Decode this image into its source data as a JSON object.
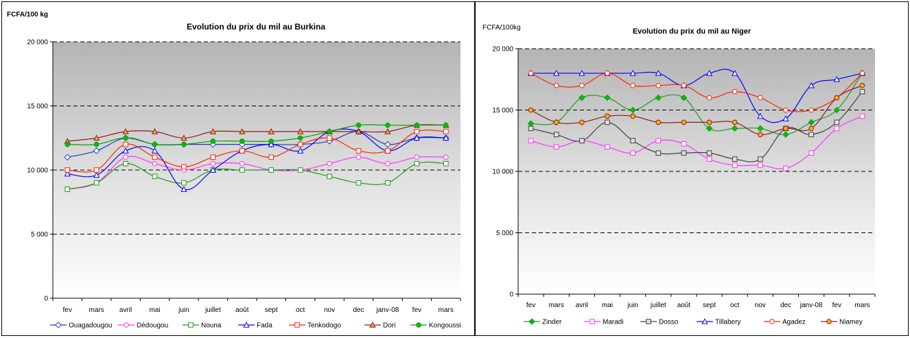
{
  "chart_data": [
    {
      "type": "line",
      "title": "Evolution du prix du mil au Burkina",
      "ylabel": "FCFA/100 kg",
      "ylim": [
        0,
        20000
      ],
      "yticks": [
        "0",
        "5 000",
        "10 000",
        "15 000",
        "20 000"
      ],
      "ytick_values": [
        0,
        5000,
        10000,
        15000,
        20000
      ],
      "categories": [
        "fev",
        "mars",
        "avril",
        "mai",
        "juin",
        "juillet",
        "août",
        "sept",
        "oct",
        "nov",
        "dec",
        "janv-08",
        "fev",
        "mars"
      ],
      "legend_position": "bottom",
      "grid": "dashed horizontal",
      "series": [
        {
          "name": "Ouagadougou",
          "color": "#1f3fbf",
          "marker": "diamond",
          "fill": "#ffffff",
          "values": [
            11000,
            11500,
            12500,
            12000,
            12000,
            12000,
            12000,
            12000,
            12000,
            12250,
            13000,
            12000,
            12500,
            12500
          ]
        },
        {
          "name": "Dédougou",
          "color": "#ff33ff",
          "marker": "circle",
          "fill": "#ffffff",
          "values": [
            8500,
            9000,
            11000,
            10500,
            10000,
            10500,
            10500,
            10000,
            10000,
            10500,
            11000,
            10500,
            11000,
            11000
          ]
        },
        {
          "name": "Nouna",
          "color": "#1a9a1a",
          "marker": "square",
          "fill": "#ffffff",
          "values": [
            8500,
            9000,
            10500,
            9500,
            9000,
            10000,
            10000,
            10000,
            10000,
            9500,
            9000,
            9000,
            10500,
            10500
          ]
        },
        {
          "name": "Fada",
          "color": "#0000ff",
          "marker": "triangle",
          "fill": "#ffffff",
          "values": [
            9700,
            9600,
            11500,
            11500,
            8500,
            10000,
            11500,
            12000,
            11500,
            13000,
            13000,
            11500,
            12500,
            12500
          ]
        },
        {
          "name": "Tenkodogo",
          "color": "#ff2200",
          "marker": "square",
          "fill": "#ffffff",
          "values": [
            10000,
            10000,
            12000,
            11000,
            10250,
            11000,
            11500,
            11000,
            12000,
            12500,
            11500,
            11500,
            13000,
            13000
          ]
        },
        {
          "name": "Dori",
          "color": "#8b1a1a",
          "marker": "triangle",
          "fill": "#ffa040",
          "values": [
            12250,
            12500,
            13000,
            13000,
            12500,
            13000,
            13000,
            13000,
            13000,
            13000,
            13000,
            13000,
            13500,
            13500
          ]
        },
        {
          "name": "Kongoussi",
          "color": "#00a000",
          "marker": "circle",
          "fill": "#00c000",
          "values": [
            12000,
            12000,
            12500,
            12000,
            12000,
            12250,
            12250,
            12250,
            12500,
            13000,
            13500,
            13500,
            13500,
            13500
          ]
        }
      ]
    },
    {
      "type": "line",
      "title": "Evolution du prix du mil au Niger",
      "ylabel": "FCFA/100kg",
      "ylim": [
        0,
        20000
      ],
      "yticks": [
        "0",
        "5 000",
        "10 000",
        "15 000",
        "20 000"
      ],
      "ytick_values": [
        0,
        5000,
        10000,
        15000,
        20000
      ],
      "categories": [
        "fev",
        "mars",
        "avril",
        "mai",
        "juin",
        "juillet",
        "août",
        "sept",
        "oct",
        "nov",
        "dec",
        "janv-08",
        "fev",
        "mars"
      ],
      "legend_position": "bottom",
      "grid": "dashed horizontal",
      "series": [
        {
          "name": "Zinder",
          "color": "#1a9a1a",
          "marker": "diamond",
          "fill": "#00c000",
          "values": [
            13900,
            14000,
            16000,
            16000,
            15000,
            16000,
            16000,
            13500,
            13500,
            13500,
            13000,
            14000,
            15000,
            18000
          ]
        },
        {
          "name": "Maradi",
          "color": "#ff33ff",
          "marker": "square",
          "fill": "#ffffff",
          "values": [
            12500,
            12000,
            12500,
            12000,
            11500,
            12500,
            12250,
            11000,
            10500,
            10500,
            10250,
            11500,
            13500,
            14500
          ]
        },
        {
          "name": "Dosso",
          "color": "#404040",
          "marker": "square",
          "fill": "#e0e0e0",
          "values": [
            13500,
            13000,
            12500,
            14000,
            12500,
            11500,
            11500,
            11500,
            11000,
            11000,
            13500,
            13000,
            14000,
            16500
          ]
        },
        {
          "name": "Tillabery",
          "color": "#0000ff",
          "marker": "triangle",
          "fill": "#ffffff",
          "values": [
            18000,
            18000,
            18000,
            18000,
            18000,
            18000,
            17000,
            18000,
            18000,
            14500,
            14300,
            17000,
            17500,
            18000
          ]
        },
        {
          "name": "Agadez",
          "color": "#ff2200",
          "marker": "circle",
          "fill": "#ffffff",
          "values": [
            18000,
            17000,
            17000,
            18000,
            17000,
            17000,
            17000,
            16000,
            16500,
            16000,
            15000,
            15000,
            16000,
            18000
          ]
        },
        {
          "name": "Niamey",
          "color": "#8b1a1a",
          "marker": "circle",
          "fill": "#ffb000",
          "values": [
            15000,
            14000,
            14000,
            14500,
            14500,
            14000,
            14000,
            14000,
            14000,
            13000,
            13500,
            13500,
            16000,
            17000
          ]
        }
      ]
    }
  ]
}
